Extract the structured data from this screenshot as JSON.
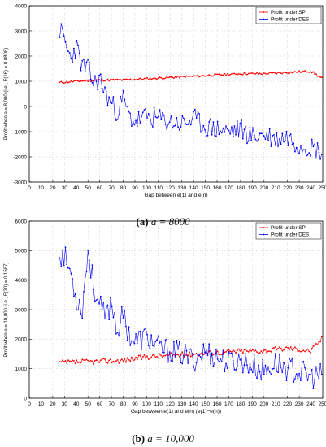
{
  "captions": [
    {
      "label": "(a)",
      "text": "a = 8000"
    },
    {
      "label": "(b)",
      "text": "a = 10,000"
    }
  ],
  "chart_data": [
    {
      "type": "line",
      "xlabel": "Gap between e(1) and e(n)",
      "ylabel": "Profit when a = 8,000 (i.e., F(16) = 0.0808)",
      "xlim": [
        0,
        250
      ],
      "ylim": [
        -3000,
        4000
      ],
      "xticks": [
        0,
        10,
        20,
        30,
        40,
        50,
        60,
        70,
        80,
        90,
        100,
        110,
        120,
        130,
        140,
        150,
        160,
        170,
        180,
        190,
        200,
        210,
        220,
        230,
        240,
        250
      ],
      "yticks": [
        -3000,
        -2000,
        -1000,
        0,
        1000,
        2000,
        3000,
        4000
      ],
      "grid": true,
      "legend_position": "top-right",
      "series": [
        {
          "name": "Profit under SP",
          "color": "#ff0000",
          "marker": "dot",
          "x": [
            26,
            40,
            60,
            80,
            100,
            120,
            140,
            160,
            180,
            200,
            220,
            240,
            250
          ],
          "values": [
            950,
            1000,
            1050,
            1050,
            1100,
            1150,
            1200,
            1250,
            1300,
            1300,
            1350,
            1400,
            1100
          ]
        },
        {
          "name": "Profit under DES",
          "color": "#0000ff",
          "marker": "dot",
          "x": [
            26,
            30,
            35,
            40,
            45,
            50,
            55,
            60,
            65,
            70,
            75,
            80,
            85,
            90,
            100,
            110,
            120,
            130,
            140,
            150,
            160,
            170,
            180,
            190,
            200,
            210,
            220,
            230,
            240,
            250
          ],
          "values": [
            3050,
            2600,
            1900,
            2400,
            1600,
            1500,
            900,
            1100,
            500,
            100,
            -200,
            300,
            -400,
            -600,
            -400,
            -500,
            -600,
            -700,
            -500,
            -800,
            -900,
            -1000,
            -900,
            -1200,
            -1100,
            -1300,
            -1200,
            -1500,
            -1600,
            -1800
          ]
        }
      ]
    },
    {
      "type": "line",
      "xlabel": "Gap between e(1) and e(n) (e(1)−e(n))",
      "ylabel": "Profit when a = 10,000 (i.e., F(20) = 0.1587)",
      "xlim": [
        0,
        250
      ],
      "ylim": [
        0,
        6000
      ],
      "xticks": [
        0,
        10,
        20,
        30,
        40,
        50,
        60,
        70,
        80,
        90,
        100,
        110,
        120,
        130,
        140,
        150,
        160,
        170,
        180,
        190,
        200,
        210,
        220,
        230,
        240,
        250
      ],
      "yticks": [
        0,
        1000,
        2000,
        3000,
        4000,
        5000,
        6000
      ],
      "grid": true,
      "legend_position": "top-right",
      "series": [
        {
          "name": "Profit under SP",
          "color": "#ff0000",
          "marker": "dot",
          "x": [
            26,
            40,
            60,
            80,
            100,
            120,
            140,
            160,
            180,
            200,
            220,
            240,
            250
          ],
          "values": [
            1200,
            1220,
            1250,
            1280,
            1400,
            1450,
            1500,
            1550,
            1600,
            1600,
            1700,
            1600,
            2050
          ]
        },
        {
          "name": "Profit under DES",
          "color": "#0000ff",
          "marker": "dot",
          "x": [
            26,
            30,
            35,
            40,
            45,
            50,
            55,
            60,
            65,
            70,
            75,
            80,
            85,
            90,
            100,
            110,
            120,
            130,
            140,
            150,
            160,
            170,
            180,
            190,
            200,
            210,
            220,
            230,
            240,
            250
          ],
          "values": [
            4900,
            4800,
            4300,
            3400,
            3000,
            5000,
            3800,
            3100,
            2700,
            3300,
            2300,
            2800,
            2200,
            1900,
            2100,
            1700,
            1600,
            1500,
            1300,
            1600,
            1400,
            1200,
            1300,
            1100,
            900,
            1200,
            1000,
            900,
            700,
            800
          ]
        }
      ]
    }
  ]
}
